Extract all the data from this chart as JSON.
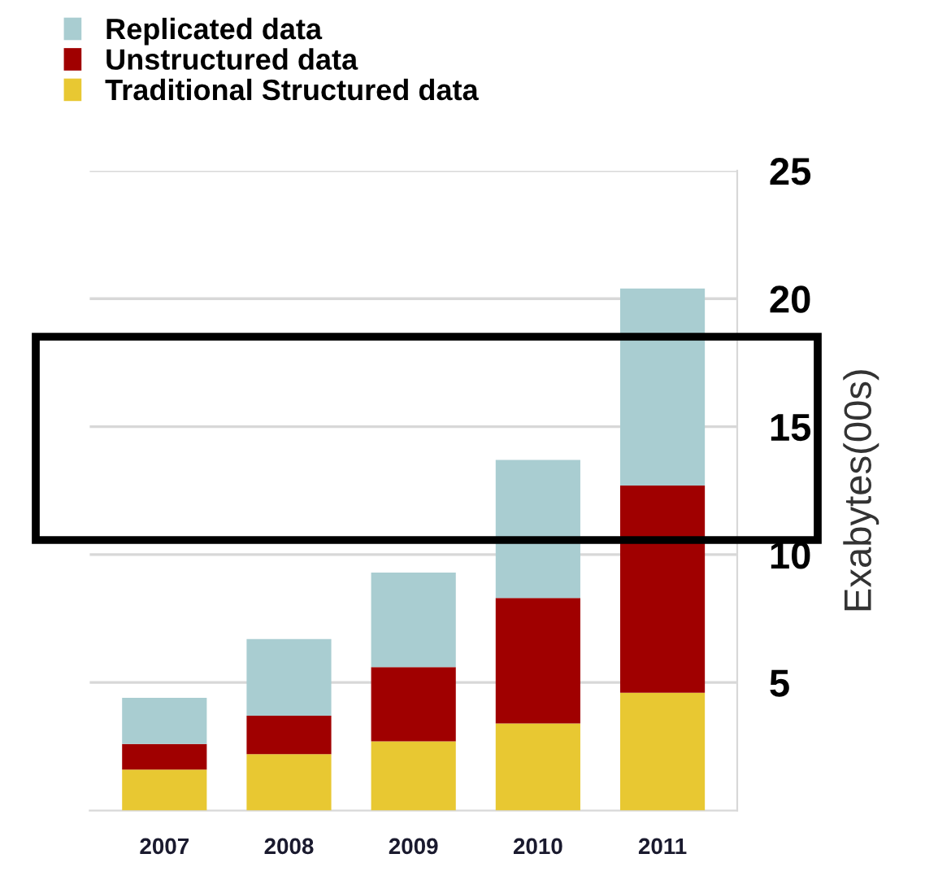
{
  "chart_data": {
    "type": "bar",
    "stacked": true,
    "categories": [
      "2007",
      "2008",
      "2009",
      "2010",
      "2011"
    ],
    "series": [
      {
        "name": "Traditional Structured data",
        "color": "#e8c832",
        "values": [
          1.6,
          2.2,
          2.7,
          3.4,
          4.6
        ]
      },
      {
        "name": "Unstructured data",
        "color": "#a00000",
        "values": [
          1.0,
          1.5,
          2.9,
          4.9,
          8.1
        ]
      },
      {
        "name": "Replicated data",
        "color": "#a9cdd1",
        "values": [
          1.8,
          3.0,
          3.7,
          5.4,
          7.7
        ]
      }
    ],
    "ylabel": "Exabytes(00s)",
    "ylim": [
      0,
      25
    ],
    "yticks": [
      5,
      10,
      15,
      20,
      25
    ],
    "grid": "y",
    "legend": "top left"
  }
}
